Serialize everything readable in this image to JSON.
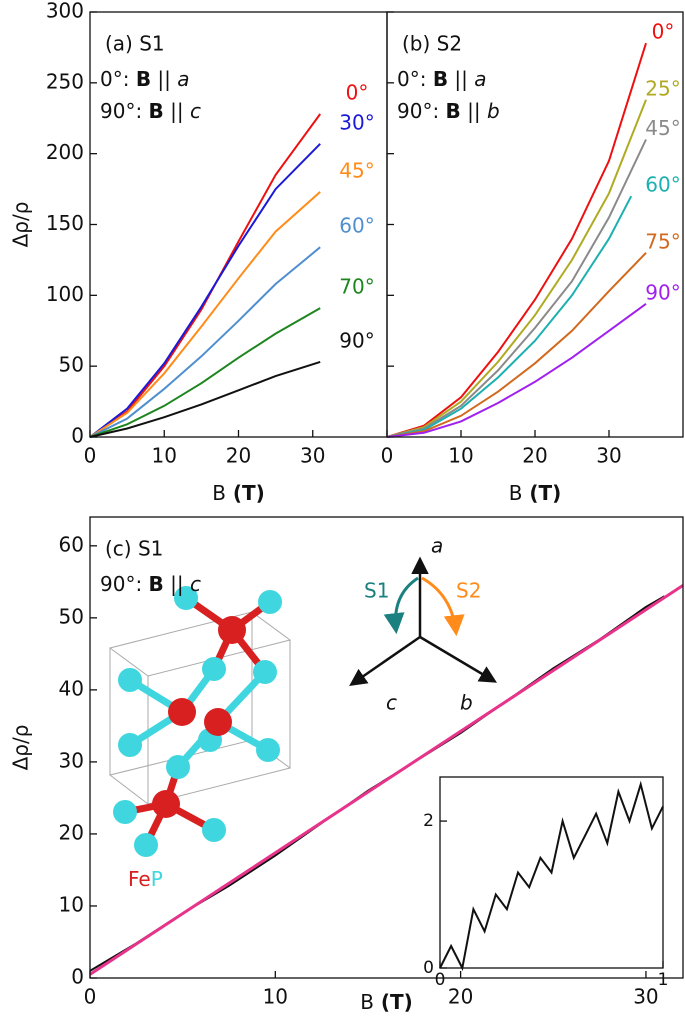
{
  "chart_data": [
    {
      "type": "line",
      "panel": "(a)  S1",
      "annotations": [
        [
          "0°: ",
          "B",
          " || ",
          "a"
        ],
        [
          "90°: ",
          "B",
          " || ",
          "c"
        ]
      ],
      "x_label": [
        "B",
        " (T)"
      ],
      "y_label": "Δρ/ρ",
      "xlim": [
        0,
        40
      ],
      "ylim": [
        0,
        300
      ],
      "xticks": [
        0,
        10,
        20,
        30
      ],
      "yticks": [
        0,
        50,
        100,
        150,
        200,
        250,
        300
      ],
      "x": [
        0,
        5,
        10,
        15,
        20,
        25,
        31
      ],
      "series": [
        {
          "name": "0°",
          "color": "#ee1010",
          "values": [
            0,
            18,
            50,
            90,
            138,
            185,
            228
          ]
        },
        {
          "name": "30°",
          "color": "#1a1ad8",
          "values": [
            0,
            20,
            52,
            92,
            135,
            175,
            207
          ]
        },
        {
          "name": "45°",
          "color": "#ff8c1a",
          "values": [
            0,
            17,
            45,
            78,
            112,
            145,
            173
          ]
        },
        {
          "name": "60°",
          "color": "#4f8fd0",
          "values": [
            0,
            13,
            34,
            57,
            82,
            108,
            134
          ]
        },
        {
          "name": "70°",
          "color": "#1e861e",
          "values": [
            0,
            9,
            22,
            38,
            56,
            73,
            91
          ]
        },
        {
          "name": "90°",
          "color": "#111111",
          "values": [
            0,
            6,
            14,
            23,
            33,
            43,
            53
          ]
        }
      ]
    },
    {
      "type": "line",
      "panel": "(b)  S2",
      "annotations": [
        [
          "0°: ",
          "B",
          " || ",
          "a"
        ],
        [
          "90°: ",
          "B",
          " || ",
          "b"
        ]
      ],
      "x_label": [
        "B",
        " (T)"
      ],
      "xlim": [
        0,
        40
      ],
      "ylim": [
        0,
        300
      ],
      "xticks": [
        0,
        10,
        20,
        30
      ],
      "yticks": [
        0,
        50,
        100,
        150,
        200,
        250,
        300
      ],
      "series": [
        {
          "name": "0°",
          "color": "#ee1010",
          "x": [
            0,
            5,
            10,
            15,
            20,
            25,
            30,
            35
          ],
          "values": [
            0,
            8,
            28,
            60,
            97,
            140,
            195,
            278
          ]
        },
        {
          "name": "25°",
          "color": "#b0aa22",
          "x": [
            0,
            5,
            10,
            15,
            20,
            25,
            30,
            35
          ],
          "values": [
            0,
            7,
            25,
            53,
            86,
            125,
            172,
            238
          ]
        },
        {
          "name": "45°",
          "color": "#8a8a8a",
          "x": [
            0,
            5,
            10,
            15,
            20,
            25,
            30,
            35
          ],
          "values": [
            0,
            6,
            22,
            47,
            77,
            110,
            155,
            210
          ]
        },
        {
          "name": "60°",
          "color": "#1cb0b0",
          "x": [
            0,
            5,
            10,
            15,
            20,
            25,
            30,
            33
          ],
          "values": [
            0,
            5,
            20,
            42,
            68,
            100,
            140,
            170
          ]
        },
        {
          "name": "75°",
          "color": "#d2691e",
          "x": [
            0,
            5,
            10,
            15,
            20,
            25,
            30,
            35
          ],
          "values": [
            0,
            4,
            15,
            32,
            52,
            75,
            103,
            130
          ]
        },
        {
          "name": "90°",
          "color": "#a020f0",
          "x": [
            0,
            5,
            10,
            15,
            20,
            25,
            30,
            35
          ],
          "values": [
            0,
            3,
            11,
            24,
            39,
            56,
            75,
            94
          ]
        }
      ]
    },
    {
      "type": "line",
      "panel": "(c)  S1",
      "annotations": [
        [
          "90°: ",
          "B",
          " || ",
          "c"
        ]
      ],
      "x_label": [
        "B",
        " (T)"
      ],
      "y_label": "Δρ/ρ",
      "xlim": [
        0,
        32
      ],
      "ylim": [
        0,
        64
      ],
      "xticks": [
        0,
        10,
        20,
        30
      ],
      "yticks": [
        0,
        10,
        20,
        30,
        40,
        50,
        60
      ],
      "series": [
        {
          "color": "#111111",
          "x": [
            0,
            2.5,
            5,
            7.5,
            10,
            12.5,
            15,
            17.5,
            20,
            22.5,
            25,
            27.5,
            30,
            31
          ],
          "values": [
            1,
            4.8,
            9,
            12.8,
            17,
            21.5,
            26,
            30,
            34,
            38.5,
            43,
            47,
            51.5,
            53
          ]
        },
        {
          "color": "#e8338a",
          "x": [
            0,
            32
          ],
          "values": [
            0.5,
            54.5
          ]
        }
      ]
    },
    {
      "type": "line",
      "xlim": [
        0,
        1
      ],
      "ylim": [
        0,
        2.6
      ],
      "xticks": [
        0,
        1
      ],
      "yticks": [
        0,
        2
      ],
      "series": [
        {
          "color": "#111111",
          "x": [
            0,
            0.05,
            0.1,
            0.15,
            0.2,
            0.25,
            0.3,
            0.35,
            0.4,
            0.45,
            0.5,
            0.55,
            0.6,
            0.65,
            0.7,
            0.75,
            0.8,
            0.85,
            0.9,
            0.95,
            1
          ],
          "values": [
            0,
            0.3,
            0,
            0.8,
            0.5,
            1.0,
            0.8,
            1.3,
            1.1,
            1.5,
            1.3,
            2.0,
            1.5,
            1.8,
            2.1,
            1.7,
            2.4,
            2.0,
            2.5,
            1.9,
            2.2
          ]
        }
      ]
    }
  ],
  "diagram": {
    "axes": [
      "a",
      "b",
      "c"
    ],
    "rotations": [
      "S1",
      "S2"
    ],
    "compound": [
      "Fe",
      "P"
    ]
  }
}
